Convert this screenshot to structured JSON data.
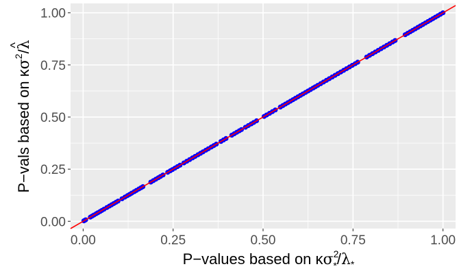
{
  "chart_data": {
    "type": "scatter",
    "title": "",
    "xlabel": {
      "prefix": "P−values based on κ",
      "sigma": "σ",
      "sup": "2",
      "sub": "*",
      "slash": "/",
      "lambda": "λ",
      "lambda_sub": "*"
    },
    "ylabel": {
      "prefix": "P−vals based on κ",
      "sigma": "σ",
      "sup": "2",
      "slash": "/",
      "lambda": "λ",
      "hat": "^"
    },
    "xlim": [
      -0.035,
      1.035
    ],
    "ylim": [
      -0.035,
      1.045
    ],
    "x_ticks": [
      0,
      0.25,
      0.5,
      0.75,
      1
    ],
    "y_ticks": [
      0,
      0.25,
      0.5,
      0.75,
      1
    ],
    "x_tick_labels": [
      "0.00",
      "0.25",
      "0.50",
      "0.75",
      "1.00"
    ],
    "y_tick_labels": [
      "0.00",
      "0.25",
      "0.50",
      "0.75",
      "1.00"
    ],
    "grid": true,
    "reference_line": {
      "slope": 1,
      "intercept": 0,
      "color": "#ff0000"
    },
    "point_color": "#0000ff",
    "panel_color": "#ebebeb",
    "points": [
      [
        0.002,
        0.002
      ],
      [
        0.004,
        0.004
      ],
      [
        0.007,
        0.007
      ],
      [
        0.02,
        0.02
      ],
      [
        0.025,
        0.025
      ],
      [
        0.03,
        0.03
      ],
      [
        0.036,
        0.036
      ],
      [
        0.041,
        0.041
      ],
      [
        0.047,
        0.047
      ],
      [
        0.052,
        0.052
      ],
      [
        0.058,
        0.058
      ],
      [
        0.066,
        0.066
      ],
      [
        0.073,
        0.073
      ],
      [
        0.079,
        0.079
      ],
      [
        0.085,
        0.085
      ],
      [
        0.091,
        0.091
      ],
      [
        0.097,
        0.097
      ],
      [
        0.108,
        0.108
      ],
      [
        0.116,
        0.116
      ],
      [
        0.123,
        0.123
      ],
      [
        0.129,
        0.129
      ],
      [
        0.135,
        0.135
      ],
      [
        0.142,
        0.142
      ],
      [
        0.148,
        0.148
      ],
      [
        0.155,
        0.155
      ],
      [
        0.161,
        0.161
      ],
      [
        0.166,
        0.166
      ],
      [
        0.188,
        0.188
      ],
      [
        0.195,
        0.195
      ],
      [
        0.202,
        0.202
      ],
      [
        0.209,
        0.209
      ],
      [
        0.215,
        0.215
      ],
      [
        0.222,
        0.222
      ],
      [
        0.235,
        0.235
      ],
      [
        0.242,
        0.242
      ],
      [
        0.248,
        0.248
      ],
      [
        0.255,
        0.255
      ],
      [
        0.262,
        0.262
      ],
      [
        0.269,
        0.269
      ],
      [
        0.28,
        0.28
      ],
      [
        0.288,
        0.288
      ],
      [
        0.296,
        0.296
      ],
      [
        0.304,
        0.304
      ],
      [
        0.311,
        0.311
      ],
      [
        0.319,
        0.319
      ],
      [
        0.326,
        0.326
      ],
      [
        0.333,
        0.333
      ],
      [
        0.341,
        0.341
      ],
      [
        0.348,
        0.348
      ],
      [
        0.356,
        0.356
      ],
      [
        0.363,
        0.363
      ],
      [
        0.37,
        0.37
      ],
      [
        0.383,
        0.383
      ],
      [
        0.39,
        0.39
      ],
      [
        0.397,
        0.397
      ],
      [
        0.413,
        0.413
      ],
      [
        0.42,
        0.42
      ],
      [
        0.427,
        0.427
      ],
      [
        0.434,
        0.434
      ],
      [
        0.44,
        0.44
      ],
      [
        0.451,
        0.451
      ],
      [
        0.459,
        0.459
      ],
      [
        0.467,
        0.467
      ],
      [
        0.474,
        0.474
      ],
      [
        0.482,
        0.482
      ],
      [
        0.503,
        0.503
      ],
      [
        0.51,
        0.51
      ],
      [
        0.518,
        0.518
      ],
      [
        0.526,
        0.526
      ],
      [
        0.534,
        0.534
      ],
      [
        0.548,
        0.548
      ],
      [
        0.555,
        0.555
      ],
      [
        0.562,
        0.562
      ],
      [
        0.569,
        0.569
      ],
      [
        0.576,
        0.576
      ],
      [
        0.583,
        0.583
      ],
      [
        0.59,
        0.59
      ],
      [
        0.597,
        0.597
      ],
      [
        0.604,
        0.604
      ],
      [
        0.611,
        0.611
      ],
      [
        0.618,
        0.618
      ],
      [
        0.625,
        0.625
      ],
      [
        0.632,
        0.632
      ],
      [
        0.639,
        0.639
      ],
      [
        0.645,
        0.645
      ],
      [
        0.652,
        0.652
      ],
      [
        0.66,
        0.66
      ],
      [
        0.668,
        0.668
      ],
      [
        0.676,
        0.676
      ],
      [
        0.684,
        0.684
      ],
      [
        0.692,
        0.692
      ],
      [
        0.7,
        0.7
      ],
      [
        0.708,
        0.708
      ],
      [
        0.716,
        0.716
      ],
      [
        0.724,
        0.724
      ],
      [
        0.732,
        0.732
      ],
      [
        0.74,
        0.74
      ],
      [
        0.748,
        0.748
      ],
      [
        0.756,
        0.756
      ],
      [
        0.763,
        0.763
      ],
      [
        0.788,
        0.788
      ],
      [
        0.796,
        0.796
      ],
      [
        0.804,
        0.804
      ],
      [
        0.812,
        0.812
      ],
      [
        0.82,
        0.82
      ],
      [
        0.828,
        0.828
      ],
      [
        0.836,
        0.836
      ],
      [
        0.844,
        0.844
      ],
      [
        0.852,
        0.852
      ],
      [
        0.86,
        0.86
      ],
      [
        0.867,
        0.867
      ],
      [
        0.895,
        0.895
      ],
      [
        0.902,
        0.902
      ],
      [
        0.909,
        0.909
      ],
      [
        0.916,
        0.916
      ],
      [
        0.923,
        0.923
      ],
      [
        0.93,
        0.93
      ],
      [
        0.937,
        0.937
      ],
      [
        0.944,
        0.944
      ],
      [
        0.951,
        0.951
      ],
      [
        0.958,
        0.958
      ],
      [
        0.965,
        0.965
      ],
      [
        0.972,
        0.972
      ],
      [
        0.979,
        0.979
      ],
      [
        0.986,
        0.986
      ],
      [
        0.993,
        0.993
      ],
      [
        1.0,
        1.0
      ]
    ]
  }
}
